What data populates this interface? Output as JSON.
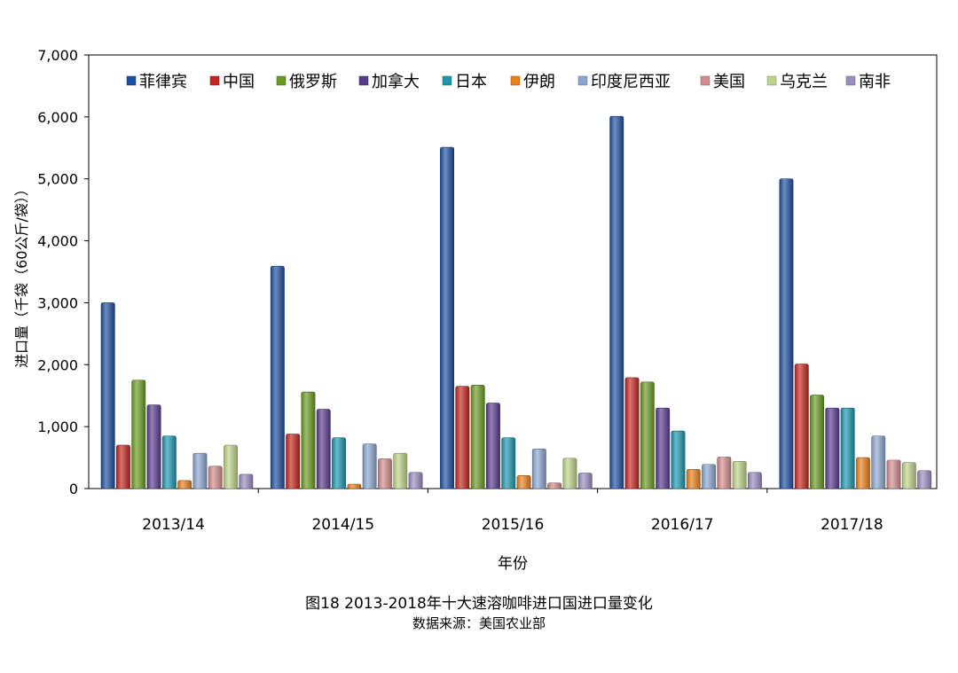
{
  "chart_data": {
    "type": "bar",
    "categories": [
      "2013/14",
      "2014/15",
      "2015/16",
      "2016/17",
      "2017/18"
    ],
    "series": [
      {
        "name": "菲律宾",
        "color": "#1f4fa0",
        "values": [
          3000,
          3590,
          5510,
          6010,
          5000
        ]
      },
      {
        "name": "中国",
        "color": "#c42620",
        "values": [
          700,
          880,
          1650,
          1790,
          2010
        ]
      },
      {
        "name": "俄罗斯",
        "color": "#6c9a22",
        "values": [
          1750,
          1560,
          1670,
          1720,
          1510
        ]
      },
      {
        "name": "加拿大",
        "color": "#5a3c90",
        "values": [
          1350,
          1280,
          1380,
          1300,
          1300
        ]
      },
      {
        "name": "日本",
        "color": "#1c97ad",
        "values": [
          850,
          820,
          820,
          930,
          1300
        ]
      },
      {
        "name": "伊朗",
        "color": "#e8801c",
        "values": [
          130,
          70,
          210,
          310,
          500
        ]
      },
      {
        "name": "印度尼西亚",
        "color": "#8aa5d0",
        "values": [
          570,
          720,
          640,
          390,
          850
        ]
      },
      {
        "name": "美国",
        "color": "#d38c8c",
        "values": [
          360,
          480,
          90,
          510,
          460
        ]
      },
      {
        "name": "乌克兰",
        "color": "#bdd28a",
        "values": [
          700,
          570,
          490,
          440,
          420
        ]
      },
      {
        "name": "南非",
        "color": "#9a8cc0",
        "values": [
          230,
          260,
          250,
          260,
          290
        ]
      }
    ],
    "yticks": [
      "0",
      "1,000",
      "2,000",
      "3,000",
      "4,000",
      "5,000",
      "6,000",
      "7,000"
    ],
    "ylim": [
      0,
      7000
    ],
    "ylabel": "进口量（千袋（60公斤/袋））",
    "xlabel": "年份",
    "legend_position": "top"
  },
  "caption": {
    "title": "图18 2013-2018年十大速溶咖啡进口国进口量变化",
    "source": "数据来源：美国农业部"
  }
}
